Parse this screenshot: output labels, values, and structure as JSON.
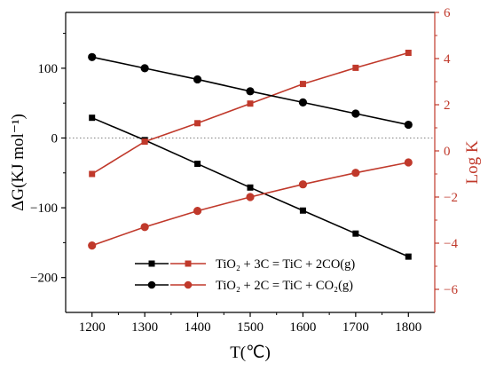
{
  "chart_data": {
    "type": "line",
    "x": [
      1200,
      1300,
      1400,
      1500,
      1600,
      1700,
      1800
    ],
    "xlabel": "T(℃)",
    "xlim": [
      1150,
      1850
    ],
    "xticks": [
      1200,
      1300,
      1400,
      1500,
      1600,
      1700,
      1800
    ],
    "y_left": {
      "label": "ΔG(KJ mol⁻¹)",
      "lim": [
        -250,
        180
      ],
      "ticks": [
        100,
        0,
        -100,
        -200
      ],
      "tick_labels": [
        "100",
        "0",
        "−100",
        "−200"
      ],
      "color": "#000000"
    },
    "y_right": {
      "label": "Log K",
      "lim": [
        -7,
        6
      ],
      "ticks": [
        6,
        4,
        2,
        0,
        -2,
        -4,
        -6
      ],
      "tick_labels": [
        "6",
        "4",
        "2",
        "0",
        "−2",
        "−4",
        "−6"
      ],
      "color": "#c0392b"
    },
    "zero_line": "dotted",
    "series": [
      {
        "name": "TiO₂ + 3C = TiC + 2CO(g)",
        "quantity": "ΔG",
        "axis": "left",
        "marker": "square",
        "color": "#000000",
        "values": [
          29,
          -3,
          -37,
          -71,
          -104,
          -137,
          -170
        ]
      },
      {
        "name": "TiO₂ + 3C = TiC + 2CO(g)",
        "quantity": "Log K",
        "axis": "right",
        "marker": "square",
        "color": "#c0392b",
        "values": [
          -1.0,
          0.4,
          1.2,
          2.05,
          2.9,
          3.6,
          4.25
        ]
      },
      {
        "name": "TiO₂ + 2C = TiC + CO₂(g)",
        "quantity": "ΔG",
        "axis": "left",
        "marker": "circle",
        "color": "#000000",
        "values": [
          116,
          100,
          84,
          67,
          51,
          35,
          19
        ]
      },
      {
        "name": "TiO₂ + 2C = TiC + CO₂(g)",
        "quantity": "Log K",
        "axis": "right",
        "marker": "circle",
        "color": "#c0392b",
        "values": [
          -4.1,
          -3.3,
          -2.6,
          -2.0,
          -1.45,
          -0.95,
          -0.5
        ]
      }
    ],
    "legend": {
      "placement": "bottom-center",
      "entries": [
        {
          "text": "TiO₂ + 3C = TiC + 2CO(g)",
          "marker": "square"
        },
        {
          "text": "TiO₂ + 2C = TiC + CO₂(g)",
          "marker": "circle"
        }
      ]
    }
  }
}
